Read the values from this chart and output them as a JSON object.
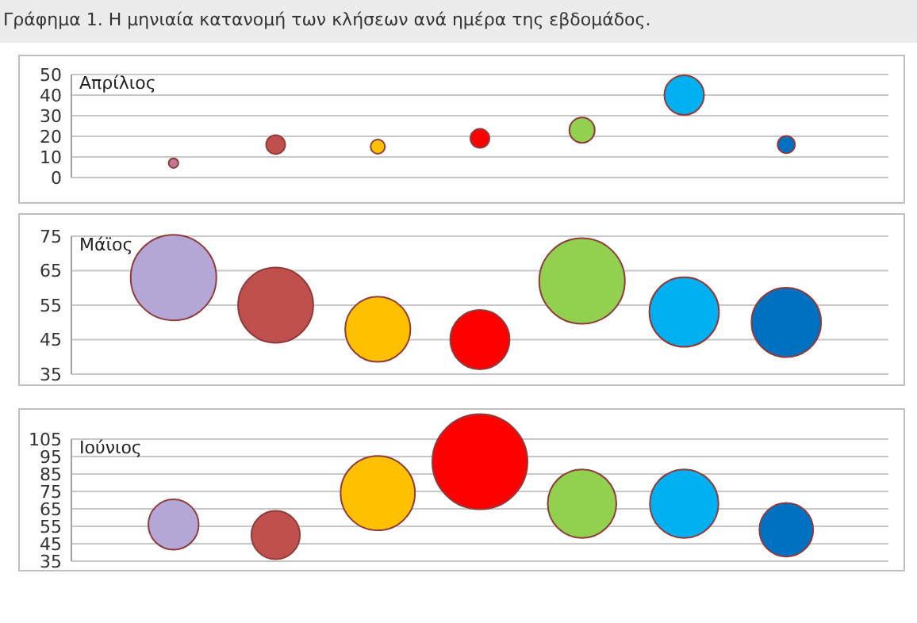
{
  "chart_data": [
    {
      "type": "bubble",
      "title": "Απρίλιος",
      "annotations": [
        "Γράφημα 1. Η μηνιαία κατανομή των κλήσεων ανά ημέρα της εβδομάδος."
      ],
      "categories": [
        null,
        null,
        null,
        null,
        null,
        null,
        null
      ],
      "values": [
        7,
        16,
        15,
        19,
        23,
        40,
        16
      ],
      "sizes": [
        0.06,
        0.23,
        0.13,
        0.23,
        0.41,
        1,
        0.19
      ],
      "colors": [
        "#c07890",
        "#c0504d",
        "#ffc000",
        "#ff0000",
        "#92d050",
        "#00b0f0",
        "#0070c0"
      ],
      "ylim": [
        0,
        50
      ],
      "yticks": [
        0,
        10,
        20,
        30,
        40,
        50
      ],
      "grid": "y",
      "tick_labels": "y"
    },
    {
      "type": "bubble",
      "title": "Μάϊος",
      "categories": [
        null,
        null,
        null,
        null,
        null,
        null,
        null
      ],
      "values": [
        63,
        55,
        48,
        45,
        62,
        53,
        50
      ],
      "sizes": [
        1,
        0.77,
        0.58,
        0.48,
        1,
        0.66,
        0.66
      ],
      "colors": [
        "#b4a7d6",
        "#c0504d",
        "#ffc000",
        "#ff0000",
        "#92d050",
        "#00b0f0",
        "#0070c0"
      ],
      "ylim": [
        35,
        75
      ],
      "yticks": [
        35,
        45,
        55,
        65,
        75
      ],
      "grid": "y",
      "tick_labels": "y"
    },
    {
      "type": "bubble",
      "title": "Ιούνιος",
      "categories": [
        null,
        null,
        null,
        null,
        null,
        null,
        null
      ],
      "values": [
        56,
        50,
        74,
        92,
        68,
        68,
        53
      ],
      "sizes": [
        0.28,
        0.26,
        0.61,
        1,
        0.52,
        0.52,
        0.32
      ],
      "colors": [
        "#b4a7d6",
        "#c0504d",
        "#ffc000",
        "#ff0000",
        "#92d050",
        "#00b0f0",
        "#0070c0"
      ],
      "ylim": [
        35,
        105
      ],
      "yticks": [
        35,
        45,
        55,
        65,
        75,
        85,
        95,
        105
      ],
      "grid": "y",
      "tick_labels": "y"
    }
  ]
}
